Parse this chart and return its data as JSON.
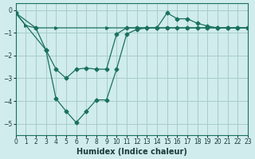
{
  "xlabel": "Humidex (Indice chaleur)",
  "bg_color": "#d0ecec",
  "grid_color": "#a8cccc",
  "line_color": "#1a7060",
  "xlim": [
    0,
    23
  ],
  "ylim": [
    -5.5,
    0.3
  ],
  "yticks": [
    0,
    -1,
    -2,
    -3,
    -4,
    -5
  ],
  "xticks": [
    0,
    1,
    2,
    3,
    4,
    5,
    6,
    7,
    8,
    9,
    10,
    11,
    12,
    13,
    14,
    15,
    16,
    17,
    18,
    19,
    20,
    21,
    22,
    23
  ],
  "tick_fontsize": 5.5,
  "xlabel_fontsize": 7.0,
  "line1_x": [
    0,
    1,
    2,
    3,
    4,
    5,
    6,
    7,
    8,
    9,
    10,
    11,
    12,
    13,
    14,
    15,
    16,
    17,
    18,
    19,
    20,
    21,
    22,
    23
  ],
  "line1_y": [
    -0.12,
    -0.68,
    -0.78,
    -0.78,
    -0.78,
    -0.78,
    -0.78,
    -0.78,
    -0.78,
    -0.78,
    -0.78,
    -0.78,
    -0.78,
    -0.78,
    -0.78,
    -0.78,
    -0.78,
    -0.78,
    -0.78,
    -0.78,
    -0.78,
    -0.78,
    -0.78,
    -0.78
  ],
  "line1_markers": [
    0,
    1,
    2,
    4,
    9,
    12,
    14,
    15,
    17,
    19,
    20,
    21,
    22,
    23
  ],
  "line2_x": [
    0,
    2,
    3,
    4,
    5,
    6,
    7,
    8,
    9,
    10,
    11,
    12,
    13,
    14,
    15,
    16,
    17,
    18,
    19,
    20,
    21,
    22,
    23
  ],
  "line2_y": [
    -0.12,
    -0.78,
    -1.75,
    -2.6,
    -3.0,
    -2.6,
    -2.55,
    -2.6,
    -2.6,
    -1.05,
    -0.78,
    -0.78,
    -0.78,
    -0.78,
    -0.78,
    -0.78,
    -0.78,
    -0.78,
    -0.78,
    -0.78,
    -0.78,
    -0.78,
    -0.78
  ],
  "line3_x": [
    0,
    3,
    4,
    5,
    6,
    7,
    8,
    9,
    10,
    11,
    12,
    13,
    14,
    15,
    16,
    17,
    18,
    19,
    20,
    21,
    22,
    23
  ],
  "line3_y": [
    -0.12,
    -1.75,
    -3.9,
    -4.45,
    -4.95,
    -4.45,
    -3.95,
    -3.95,
    -2.6,
    -1.05,
    -0.85,
    -0.78,
    -0.78,
    -0.12,
    -0.38,
    -0.38,
    -0.58,
    -0.7,
    -0.78,
    -0.78,
    -0.78,
    -0.78
  ]
}
